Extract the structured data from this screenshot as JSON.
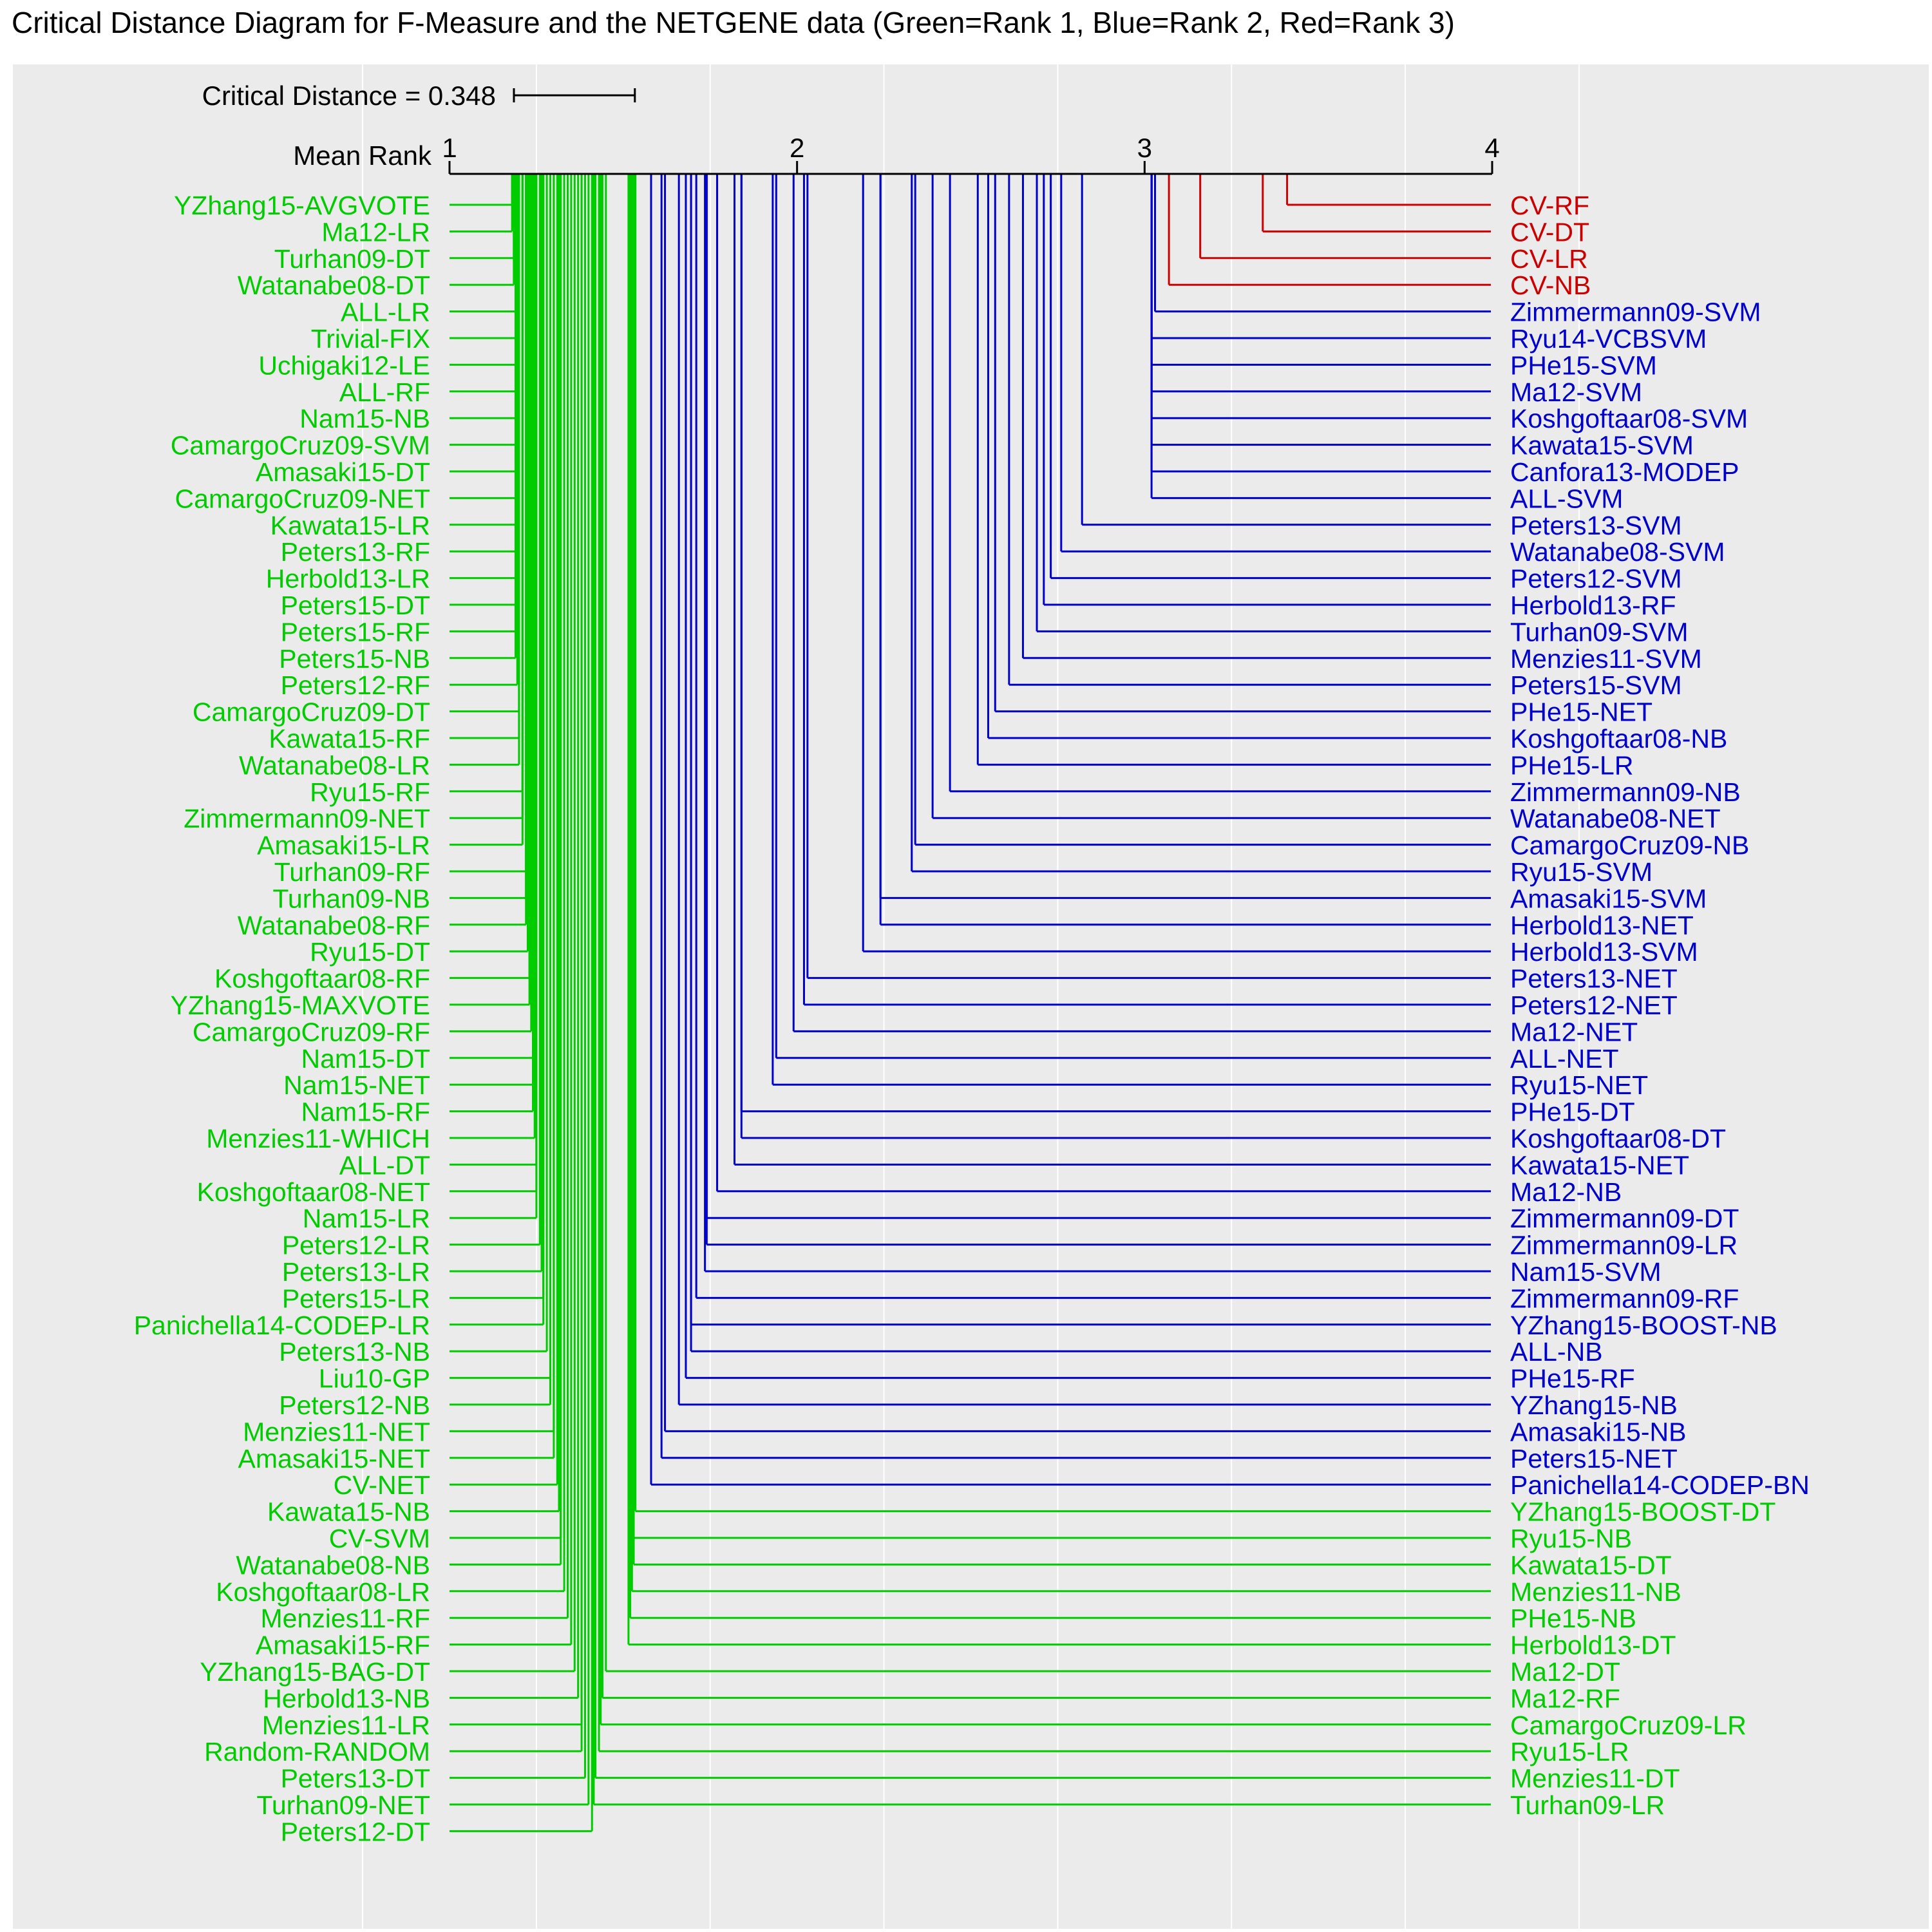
{
  "chart_data": {
    "type": "critical-distance-diagram",
    "title": "Critical Distance Diagram for F-Measure and the NETGENE data (Green=Rank 1, Blue=Rank 2, Red=Rank 3)",
    "critical_distance_label": "Critical Distance = 0.348",
    "critical_distance": 0.348,
    "axis_label": "Mean Rank",
    "xlim": [
      1,
      4
    ],
    "ticks": [
      1,
      2,
      3,
      4
    ],
    "plot_range": [
      0.75,
      4.3
    ],
    "grid": true,
    "colors": {
      "rank1": "#00cc00",
      "rank2": "#0000cc",
      "rank3": "#cc0000",
      "panel": "#ebebeb",
      "grid": "#ffffff"
    },
    "left_side": [
      {
        "name": "YZhang15-AVGVOTE",
        "rank": 1.18,
        "group": 1
      },
      {
        "name": "Ma12-LR",
        "rank": 1.18,
        "group": 1
      },
      {
        "name": "Turhan09-DT",
        "rank": 1.185,
        "group": 1
      },
      {
        "name": "Watanabe08-DT",
        "rank": 1.185,
        "group": 1
      },
      {
        "name": "ALL-LR",
        "rank": 1.19,
        "group": 1
      },
      {
        "name": "Trivial-FIX",
        "rank": 1.19,
        "group": 1
      },
      {
        "name": "Uchigaki12-LE",
        "rank": 1.19,
        "group": 1
      },
      {
        "name": "ALL-RF",
        "rank": 1.19,
        "group": 1
      },
      {
        "name": "Nam15-NB",
        "rank": 1.19,
        "group": 1
      },
      {
        "name": "CamargoCruz09-SVM",
        "rank": 1.19,
        "group": 1
      },
      {
        "name": "Amasaki15-DT",
        "rank": 1.19,
        "group": 1
      },
      {
        "name": "CamargoCruz09-NET",
        "rank": 1.19,
        "group": 1
      },
      {
        "name": "Kawata15-LR",
        "rank": 1.19,
        "group": 1
      },
      {
        "name": "Peters13-RF",
        "rank": 1.19,
        "group": 1
      },
      {
        "name": "Herbold13-LR",
        "rank": 1.19,
        "group": 1
      },
      {
        "name": "Peters15-DT",
        "rank": 1.19,
        "group": 1
      },
      {
        "name": "Peters15-RF",
        "rank": 1.19,
        "group": 1
      },
      {
        "name": "Peters15-NB",
        "rank": 1.19,
        "group": 1
      },
      {
        "name": "Peters12-RF",
        "rank": 1.195,
        "group": 1
      },
      {
        "name": "CamargoCruz09-DT",
        "rank": 1.2,
        "group": 1
      },
      {
        "name": "Kawata15-RF",
        "rank": 1.2,
        "group": 1
      },
      {
        "name": "Watanabe08-LR",
        "rank": 1.2,
        "group": 1
      },
      {
        "name": "Ryu15-RF",
        "rank": 1.21,
        "group": 1
      },
      {
        "name": "Zimmermann09-NET",
        "rank": 1.21,
        "group": 1
      },
      {
        "name": "Amasaki15-LR",
        "rank": 1.21,
        "group": 1
      },
      {
        "name": "Turhan09-RF",
        "rank": 1.22,
        "group": 1
      },
      {
        "name": "Turhan09-NB",
        "rank": 1.22,
        "group": 1
      },
      {
        "name": "Watanabe08-RF",
        "rank": 1.22,
        "group": 1
      },
      {
        "name": "Ryu15-DT",
        "rank": 1.225,
        "group": 1
      },
      {
        "name": "Koshgoftaar08-RF",
        "rank": 1.23,
        "group": 1
      },
      {
        "name": "YZhang15-MAXVOTE",
        "rank": 1.23,
        "group": 1
      },
      {
        "name": "CamargoCruz09-RF",
        "rank": 1.235,
        "group": 1
      },
      {
        "name": "Nam15-DT",
        "rank": 1.24,
        "group": 1
      },
      {
        "name": "Nam15-NET",
        "rank": 1.24,
        "group": 1
      },
      {
        "name": "Nam15-RF",
        "rank": 1.24,
        "group": 1
      },
      {
        "name": "Menzies11-WHICH",
        "rank": 1.245,
        "group": 1
      },
      {
        "name": "ALL-DT",
        "rank": 1.25,
        "group": 1
      },
      {
        "name": "Koshgoftaar08-NET",
        "rank": 1.25,
        "group": 1
      },
      {
        "name": "Nam15-LR",
        "rank": 1.25,
        "group": 1
      },
      {
        "name": "Peters12-LR",
        "rank": 1.26,
        "group": 1
      },
      {
        "name": "Peters13-LR",
        "rank": 1.265,
        "group": 1
      },
      {
        "name": "Peters15-LR",
        "rank": 1.27,
        "group": 1
      },
      {
        "name": "Panichella14-CODEP-LR",
        "rank": 1.27,
        "group": 1
      },
      {
        "name": "Peters13-NB",
        "rank": 1.28,
        "group": 1
      },
      {
        "name": "Liu10-GP",
        "rank": 1.29,
        "group": 1
      },
      {
        "name": "Peters12-NB",
        "rank": 1.29,
        "group": 1
      },
      {
        "name": "Menzies11-NET",
        "rank": 1.3,
        "group": 1
      },
      {
        "name": "Amasaki15-NET",
        "rank": 1.3,
        "group": 1
      },
      {
        "name": "CV-NET",
        "rank": 1.31,
        "group": 1
      },
      {
        "name": "Kawata15-NB",
        "rank": 1.315,
        "group": 1
      },
      {
        "name": "CV-SVM",
        "rank": 1.32,
        "group": 1
      },
      {
        "name": "Watanabe08-NB",
        "rank": 1.32,
        "group": 1
      },
      {
        "name": "Koshgoftaar08-LR",
        "rank": 1.33,
        "group": 1
      },
      {
        "name": "Menzies11-RF",
        "rank": 1.34,
        "group": 1
      },
      {
        "name": "Amasaki15-RF",
        "rank": 1.35,
        "group": 1
      },
      {
        "name": "YZhang15-BAG-DT",
        "rank": 1.36,
        "group": 1
      },
      {
        "name": "Herbold13-NB",
        "rank": 1.37,
        "group": 1
      },
      {
        "name": "Menzies11-LR",
        "rank": 1.38,
        "group": 1
      },
      {
        "name": "Random-RANDOM",
        "rank": 1.38,
        "group": 1
      },
      {
        "name": "Peters13-DT",
        "rank": 1.39,
        "group": 1
      },
      {
        "name": "Turhan09-NET",
        "rank": 1.4,
        "group": 1
      },
      {
        "name": "Peters12-DT",
        "rank": 1.41,
        "group": 1
      }
    ],
    "right_side": [
      {
        "name": "CV-RF",
        "rank": 3.41,
        "group": 3
      },
      {
        "name": "CV-DT",
        "rank": 3.34,
        "group": 3
      },
      {
        "name": "CV-LR",
        "rank": 3.16,
        "group": 3
      },
      {
        "name": "CV-NB",
        "rank": 3.07,
        "group": 3
      },
      {
        "name": "Zimmermann09-SVM",
        "rank": 3.03,
        "group": 2
      },
      {
        "name": "Ryu14-VCBSVM",
        "rank": 3.02,
        "group": 2
      },
      {
        "name": "PHe15-SVM",
        "rank": 3.02,
        "group": 2
      },
      {
        "name": "Ma12-SVM",
        "rank": 3.02,
        "group": 2
      },
      {
        "name": "Koshgoftaar08-SVM",
        "rank": 3.02,
        "group": 2
      },
      {
        "name": "Kawata15-SVM",
        "rank": 3.02,
        "group": 2
      },
      {
        "name": "Canfora13-MODEP",
        "rank": 3.02,
        "group": 2
      },
      {
        "name": "ALL-SVM",
        "rank": 3.02,
        "group": 2
      },
      {
        "name": "Peters13-SVM",
        "rank": 2.82,
        "group": 2
      },
      {
        "name": "Watanabe08-SVM",
        "rank": 2.76,
        "group": 2
      },
      {
        "name": "Peters12-SVM",
        "rank": 2.73,
        "group": 2
      },
      {
        "name": "Herbold13-RF",
        "rank": 2.71,
        "group": 2
      },
      {
        "name": "Turhan09-SVM",
        "rank": 2.69,
        "group": 2
      },
      {
        "name": "Menzies11-SVM",
        "rank": 2.65,
        "group": 2
      },
      {
        "name": "Peters15-SVM",
        "rank": 2.61,
        "group": 2
      },
      {
        "name": "PHe15-NET",
        "rank": 2.57,
        "group": 2
      },
      {
        "name": "Koshgoftaar08-NB",
        "rank": 2.55,
        "group": 2
      },
      {
        "name": "PHe15-LR",
        "rank": 2.52,
        "group": 2
      },
      {
        "name": "Zimmermann09-NB",
        "rank": 2.44,
        "group": 2
      },
      {
        "name": "Watanabe08-NET",
        "rank": 2.39,
        "group": 2
      },
      {
        "name": "CamargoCruz09-NB",
        "rank": 2.34,
        "group": 2
      },
      {
        "name": "Ryu15-SVM",
        "rank": 2.33,
        "group": 2
      },
      {
        "name": "Amasaki15-SVM",
        "rank": 2.24,
        "group": 2
      },
      {
        "name": "Herbold13-NET",
        "rank": 2.24,
        "group": 2
      },
      {
        "name": "Herbold13-SVM",
        "rank": 2.19,
        "group": 2
      },
      {
        "name": "Peters13-NET",
        "rank": 2.03,
        "group": 2
      },
      {
        "name": "Peters12-NET",
        "rank": 2.02,
        "group": 2
      },
      {
        "name": "Ma12-NET",
        "rank": 1.99,
        "group": 2
      },
      {
        "name": "ALL-NET",
        "rank": 1.94,
        "group": 2
      },
      {
        "name": "Ryu15-NET",
        "rank": 1.93,
        "group": 2
      },
      {
        "name": "PHe15-DT",
        "rank": 1.84,
        "group": 2
      },
      {
        "name": "Koshgoftaar08-DT",
        "rank": 1.84,
        "group": 2
      },
      {
        "name": "Kawata15-NET",
        "rank": 1.82,
        "group": 2
      },
      {
        "name": "Ma12-NB",
        "rank": 1.77,
        "group": 2
      },
      {
        "name": "Zimmermann09-DT",
        "rank": 1.74,
        "group": 2
      },
      {
        "name": "Zimmermann09-LR",
        "rank": 1.74,
        "group": 2
      },
      {
        "name": "Nam15-SVM",
        "rank": 1.735,
        "group": 2
      },
      {
        "name": "Zimmermann09-RF",
        "rank": 1.71,
        "group": 2
      },
      {
        "name": "YZhang15-BOOST-NB",
        "rank": 1.695,
        "group": 2
      },
      {
        "name": "ALL-NB",
        "rank": 1.695,
        "group": 2
      },
      {
        "name": "PHe15-RF",
        "rank": 1.68,
        "group": 2
      },
      {
        "name": "YZhang15-NB",
        "rank": 1.66,
        "group": 2
      },
      {
        "name": "Amasaki15-NB",
        "rank": 1.62,
        "group": 2
      },
      {
        "name": "Peters15-NET",
        "rank": 1.61,
        "group": 2
      },
      {
        "name": "Panichella14-CODEP-BN",
        "rank": 1.58,
        "group": 2
      },
      {
        "name": "YZhang15-BOOST-DT",
        "rank": 1.535,
        "group": 1
      },
      {
        "name": "Ryu15-NB",
        "rank": 1.53,
        "group": 1
      },
      {
        "name": "Kawata15-DT",
        "rank": 1.53,
        "group": 1
      },
      {
        "name": "Menzies11-NB",
        "rank": 1.525,
        "group": 1
      },
      {
        "name": "PHe15-NB",
        "rank": 1.52,
        "group": 1
      },
      {
        "name": "Herbold13-DT",
        "rank": 1.515,
        "group": 1
      },
      {
        "name": "Ma12-DT",
        "rank": 1.45,
        "group": 1
      },
      {
        "name": "Ma12-RF",
        "rank": 1.44,
        "group": 1
      },
      {
        "name": "CamargoCruz09-LR",
        "rank": 1.435,
        "group": 1
      },
      {
        "name": "Ryu15-LR",
        "rank": 1.43,
        "group": 1
      },
      {
        "name": "Menzies11-DT",
        "rank": 1.42,
        "group": 1
      },
      {
        "name": "Turhan09-LR",
        "rank": 1.415,
        "group": 1
      }
    ]
  }
}
